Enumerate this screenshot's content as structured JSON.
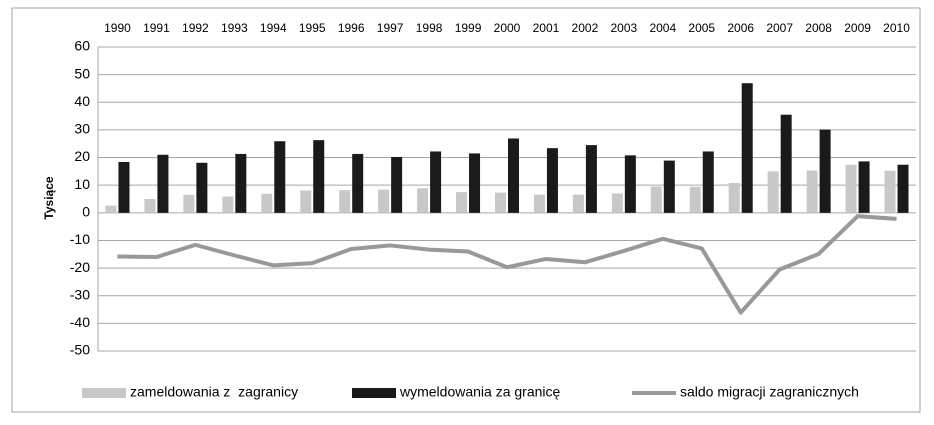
{
  "chart_data": {
    "type": "bar",
    "y_axis_label": "Tysiące",
    "categories": [
      "1990",
      "1991",
      "1992",
      "1993",
      "1994",
      "1995",
      "1996",
      "1997",
      "1998",
      "1999",
      "2000",
      "2001",
      "2002",
      "2003",
      "2004",
      "2005",
      "2006",
      "2007",
      "2008",
      "2009",
      "2010"
    ],
    "series": [
      {
        "name": "zameldowania z  zagranicy",
        "type": "bar",
        "color": "#c8c8c8",
        "values": [
          2.6,
          5.0,
          6.5,
          5.9,
          6.9,
          8.1,
          8.2,
          8.4,
          8.9,
          7.5,
          7.3,
          6.6,
          6.6,
          7.0,
          9.5,
          9.4,
          10.8,
          15.0,
          15.3,
          17.4,
          15.2
        ]
      },
      {
        "name": "wymeldowania za granicę",
        "type": "bar",
        "color": "#1a1a1a",
        "values": [
          18.4,
          21.0,
          18.1,
          21.3,
          25.9,
          26.3,
          21.3,
          20.2,
          22.2,
          21.5,
          26.9,
          23.4,
          24.5,
          20.8,
          18.9,
          22.2,
          46.9,
          35.5,
          30.1,
          18.6,
          17.4
        ]
      },
      {
        "name": "saldo migracji zagranicznych",
        "type": "line",
        "color": "#999999",
        "values": [
          -15.8,
          -16.0,
          -11.6,
          -15.4,
          -19.0,
          -18.2,
          -13.1,
          -11.8,
          -13.3,
          -14.0,
          -19.7,
          -16.7,
          -17.9,
          -13.8,
          -9.4,
          -12.9,
          -36.1,
          -20.5,
          -14.9,
          -1.2,
          -2.2
        ]
      }
    ],
    "ylim": [
      -50,
      60
    ],
    "yticks": [
      -50,
      -40,
      -30,
      -20,
      -10,
      0,
      10,
      20,
      30,
      40,
      50,
      60
    ],
    "grid": true,
    "legend": "bottom"
  }
}
